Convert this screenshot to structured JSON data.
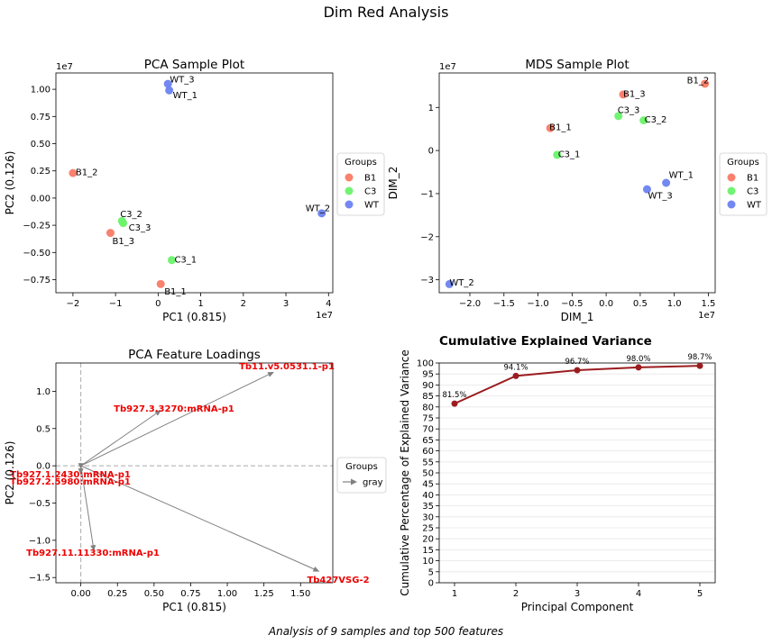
{
  "figure": {
    "title": "Dim Red Analysis",
    "caption": "Analysis of 9 samples and top 500 features"
  },
  "chart_data": [
    {
      "id": "pca",
      "type": "scatter",
      "title": "PCA Sample Plot",
      "xlabel": "PC1 (0.815)",
      "ylabel": "PC2 (0.126)",
      "x_multiplier": "1e7",
      "y_multiplier": "1e7",
      "xlim": [
        -2.4,
        4.1
      ],
      "ylim": [
        -0.87,
        1.15
      ],
      "xticks": [
        -2,
        -1,
        0,
        1,
        2,
        3,
        4
      ],
      "xtick_labels": [
        "−2",
        "−1",
        "0",
        "1",
        "2",
        "3",
        "4"
      ],
      "yticks": [
        -0.75,
        -0.5,
        -0.25,
        0.0,
        0.25,
        0.5,
        0.75,
        1.0
      ],
      "ytick_labels": [
        "−0.75",
        "−0.50",
        "−0.25",
        "0.00",
        "0.25",
        "0.50",
        "0.75",
        "1.00"
      ],
      "grid": false,
      "legend": {
        "title": "Groups",
        "placement": "right-outside",
        "entries": [
          {
            "name": "B1",
            "color": "#fa7a66"
          },
          {
            "name": "C3",
            "color": "#6cf26c"
          },
          {
            "name": "WT",
            "color": "#6c82f0"
          }
        ]
      },
      "points": [
        {
          "label": "WT_3",
          "group": "WT",
          "x": 0.23,
          "y": 1.05
        },
        {
          "label": "WT_1",
          "group": "WT",
          "x": 0.26,
          "y": 0.99
        },
        {
          "label": "B1_2",
          "group": "B1",
          "x": -2.0,
          "y": 0.23
        },
        {
          "label": "C3_2",
          "group": "C3",
          "x": -0.85,
          "y": -0.21
        },
        {
          "label": "C3_3",
          "group": "C3",
          "x": -0.82,
          "y": -0.23
        },
        {
          "label": "B1_3",
          "group": "B1",
          "x": -1.12,
          "y": -0.32
        },
        {
          "label": "WT_2",
          "group": "WT",
          "x": 3.84,
          "y": -0.14
        },
        {
          "label": "C3_1",
          "group": "C3",
          "x": 0.32,
          "y": -0.57
        },
        {
          "label": "B1_1",
          "group": "B1",
          "x": 0.06,
          "y": -0.79
        }
      ]
    },
    {
      "id": "mds",
      "type": "scatter",
      "title": "MDS Sample Plot",
      "xlabel": "DIM_1",
      "ylabel": "DIM_2",
      "x_multiplier": "1e7",
      "y_multiplier": "1e7",
      "xlim": [
        -2.45,
        1.6
      ],
      "ylim": [
        -3.3,
        1.8
      ],
      "xticks": [
        -2.0,
        -1.5,
        -1.0,
        -0.5,
        0.0,
        0.5,
        1.0,
        1.5
      ],
      "xtick_labels": [
        "−2.0",
        "−1.5",
        "−1.0",
        "−0.5",
        "0.0",
        "0.5",
        "1.0",
        "1.5"
      ],
      "yticks": [
        -3,
        -2,
        -1,
        0,
        1
      ],
      "ytick_labels": [
        "−3",
        "−2",
        "−1",
        "0",
        "1"
      ],
      "grid": false,
      "legend": {
        "title": "Groups",
        "placement": "right-outside",
        "entries": [
          {
            "name": "B1",
            "color": "#fa7a66"
          },
          {
            "name": "C3",
            "color": "#6cf26c"
          },
          {
            "name": "WT",
            "color": "#6c82f0"
          }
        ]
      },
      "points": [
        {
          "label": "B1_2",
          "group": "B1",
          "x": 1.45,
          "y": 1.55
        },
        {
          "label": "B1_3",
          "group": "B1",
          "x": 0.25,
          "y": 1.3
        },
        {
          "label": "C3_3",
          "group": "C3",
          "x": 0.18,
          "y": 0.8
        },
        {
          "label": "C3_2",
          "group": "C3",
          "x": 0.55,
          "y": 0.7
        },
        {
          "label": "B1_1",
          "group": "B1",
          "x": -0.82,
          "y": 0.52
        },
        {
          "label": "C3_1",
          "group": "C3",
          "x": -0.72,
          "y": -0.1
        },
        {
          "label": "WT_1",
          "group": "WT",
          "x": 0.88,
          "y": -0.75
        },
        {
          "label": "WT_3",
          "group": "WT",
          "x": 0.6,
          "y": -0.9
        },
        {
          "label": "WT_2",
          "group": "WT",
          "x": -2.3,
          "y": -3.1
        }
      ]
    },
    {
      "id": "loadings",
      "type": "scatter",
      "title": "PCA Feature Loadings",
      "xlabel": "PC1 (0.815)",
      "ylabel": "PC2 (0.126)",
      "xlim": [
        -0.17,
        1.72
      ],
      "ylim": [
        -1.57,
        1.38
      ],
      "xticks": [
        0.0,
        0.25,
        0.5,
        0.75,
        1.0,
        1.25,
        1.5
      ],
      "xtick_labels": [
        "0.00",
        "0.25",
        "0.50",
        "0.75",
        "1.00",
        "1.25",
        "1.50"
      ],
      "yticks": [
        -1.5,
        -1.0,
        -0.5,
        0.0,
        0.5,
        1.0
      ],
      "ytick_labels": [
        "−1.5",
        "−1.0",
        "−0.5",
        "0.0",
        "0.5",
        "1.0"
      ],
      "grid": false,
      "reference_lines": {
        "x": 0,
        "y": 0
      },
      "arrow_color": "gray",
      "label_color": "#ee0000",
      "legend": {
        "title": "Groups",
        "placement": "right-outside",
        "entries": [
          {
            "name": "gray",
            "color": "gray"
          }
        ]
      },
      "vectors": [
        {
          "label": "Tb11.v5.0531.1-p1",
          "x": 1.32,
          "y": 1.26
        },
        {
          "label": "Tb927.3.3270:mRNA-p1",
          "x": 0.55,
          "y": 0.75
        },
        {
          "label": "Tb927.1.2430:mRNA-p1",
          "x": 0.0,
          "y": -0.05
        },
        {
          "label": "Tb927.2.5980:mRNA-p1",
          "x": 0.0,
          "y": -0.12
        },
        {
          "label": "Tb927.11.11330:mRNA-p1",
          "x": 0.09,
          "y": -1.15
        },
        {
          "label": "Tb427VSG-2",
          "x": 1.63,
          "y": -1.42
        }
      ]
    },
    {
      "id": "variance",
      "type": "line",
      "title": "Cumulative Explained Variance",
      "xlabel": "Principal Component",
      "ylabel": "Cumulative Percentage of Explained Variance",
      "x": [
        1,
        2,
        3,
        4,
        5
      ],
      "values": [
        81.5,
        94.1,
        96.7,
        98.0,
        98.7
      ],
      "data_labels": [
        "81.5%",
        "94.1%",
        "96.7%",
        "98.0%",
        "98.7%"
      ],
      "xlim": [
        0.75,
        5.25
      ],
      "ylim": [
        0,
        100
      ],
      "yticks": [
        0,
        5,
        10,
        15,
        20,
        25,
        30,
        35,
        40,
        45,
        50,
        55,
        60,
        65,
        70,
        75,
        80,
        85,
        90,
        95,
        100
      ],
      "grid": true,
      "color": "#9b1c1f"
    }
  ]
}
